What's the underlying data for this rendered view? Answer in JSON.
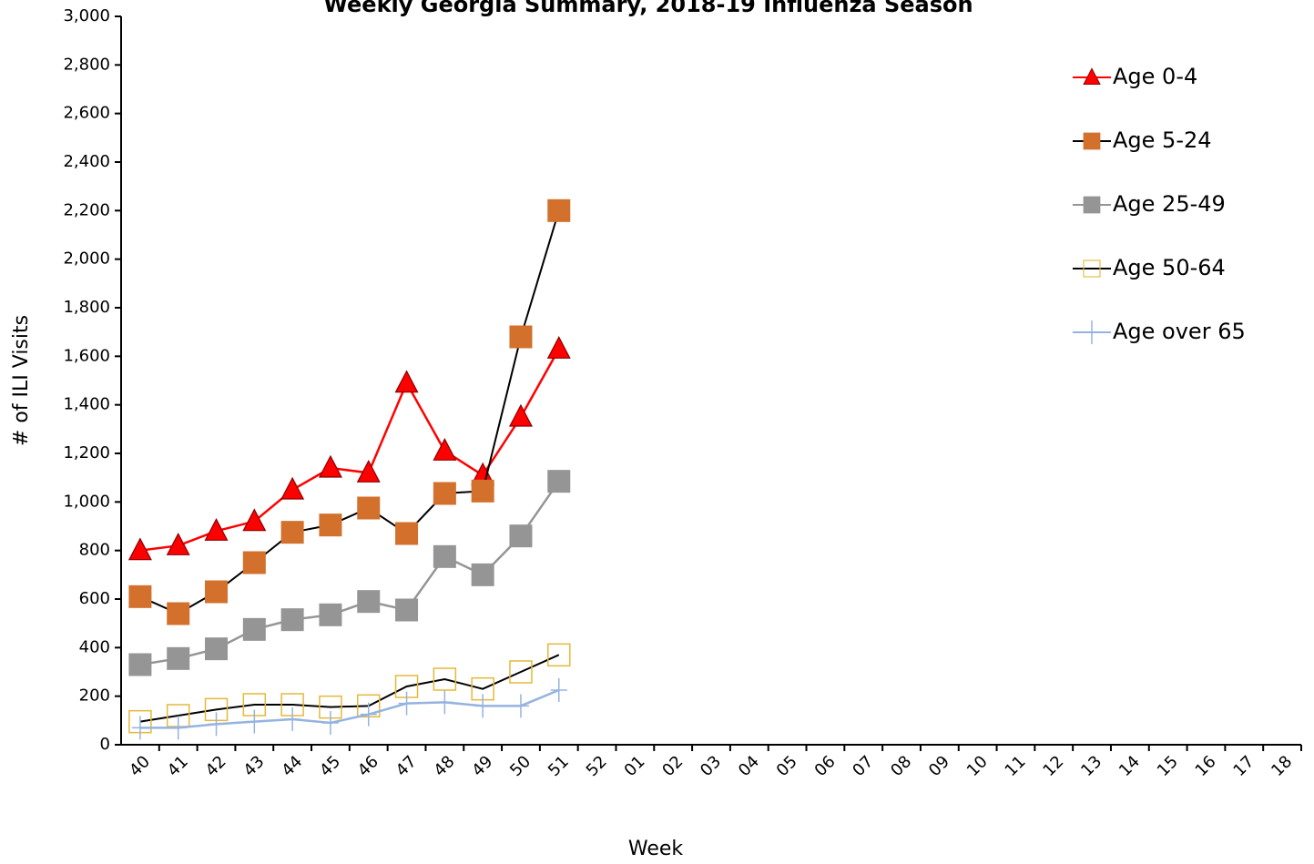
{
  "chart_data": {
    "type": "line",
    "title": "Weekly Georgia Summary, 2018-19 Influenza Season",
    "x_label": "Week",
    "y_label": "# of ILI Visits",
    "categories": [
      "40",
      "41",
      "42",
      "43",
      "44",
      "45",
      "46",
      "47",
      "48",
      "49",
      "50",
      "51",
      "52",
      "01",
      "02",
      "03",
      "04",
      "05",
      "06",
      "07",
      "08",
      "09",
      "10",
      "11",
      "12",
      "13",
      "14",
      "15",
      "16",
      "17",
      "18"
    ],
    "ylim": [
      0,
      3000
    ],
    "yticks": [
      0,
      200,
      400,
      600,
      800,
      {
        "value": 1000,
        "label": "1,000"
      },
      {
        "value": 1200,
        "label": "1,200"
      },
      {
        "value": 1400,
        "label": "1,400"
      },
      {
        "value": 1600,
        "label": "1,600"
      },
      {
        "value": 1800,
        "label": "1,800"
      },
      {
        "value": 2000,
        "label": "2,000"
      },
      {
        "value": 2200,
        "label": "2,200"
      },
      {
        "value": 2400,
        "label": "2,400"
      },
      {
        "value": 2600,
        "label": "2,600"
      },
      {
        "value": 2800,
        "label": "2,800"
      },
      {
        "value": 3000,
        "label": "3,000"
      }
    ],
    "grid": false,
    "legend_position": "right",
    "series": [
      {
        "name": "Age 0-4",
        "color": "#ff0000",
        "line_color": "#ff0000",
        "marker": "triangle",
        "values": [
          800,
          820,
          880,
          920,
          1050,
          1140,
          1120,
          1490,
          1210,
          1110,
          1350,
          1630,
          null,
          null,
          null,
          null,
          null,
          null,
          null,
          null,
          null,
          null,
          null,
          null,
          null,
          null,
          null,
          null,
          null,
          null,
          null
        ]
      },
      {
        "name": "Age 5-24",
        "color": "#d2702c",
        "line_color": "#000000",
        "marker": "square",
        "values": [
          610,
          540,
          630,
          750,
          875,
          905,
          975,
          870,
          1035,
          1045,
          1680,
          2200,
          null,
          null,
          null,
          null,
          null,
          null,
          null,
          null,
          null,
          null,
          null,
          null,
          null,
          null,
          null,
          null,
          null,
          null,
          null
        ]
      },
      {
        "name": "Age 25-49",
        "color": "#959595",
        "line_color": "#959595",
        "marker": "square",
        "values": [
          330,
          355,
          395,
          475,
          515,
          535,
          590,
          555,
          775,
          700,
          860,
          1085,
          null,
          null,
          null,
          null,
          null,
          null,
          null,
          null,
          null,
          null,
          null,
          null,
          null,
          null,
          null,
          null,
          null,
          null,
          null
        ]
      },
      {
        "name": "Age 50-64",
        "color": "#e6b83a",
        "line_color": "#000000",
        "marker": "square-open",
        "values": [
          95,
          120,
          145,
          165,
          165,
          155,
          160,
          240,
          270,
          230,
          300,
          370,
          null,
          null,
          null,
          null,
          null,
          null,
          null,
          null,
          null,
          null,
          null,
          null,
          null,
          null,
          null,
          null,
          null,
          null,
          null
        ]
      },
      {
        "name": "Age over 65",
        "color": "#95b3e0",
        "line_color": "#95b3e0",
        "marker": "plus",
        "values": [
          70,
          70,
          85,
          95,
          105,
          90,
          125,
          170,
          175,
          160,
          160,
          225,
          null,
          null,
          null,
          null,
          null,
          null,
          null,
          null,
          null,
          null,
          null,
          null,
          null,
          null,
          null,
          null,
          null,
          null,
          null
        ]
      }
    ]
  }
}
